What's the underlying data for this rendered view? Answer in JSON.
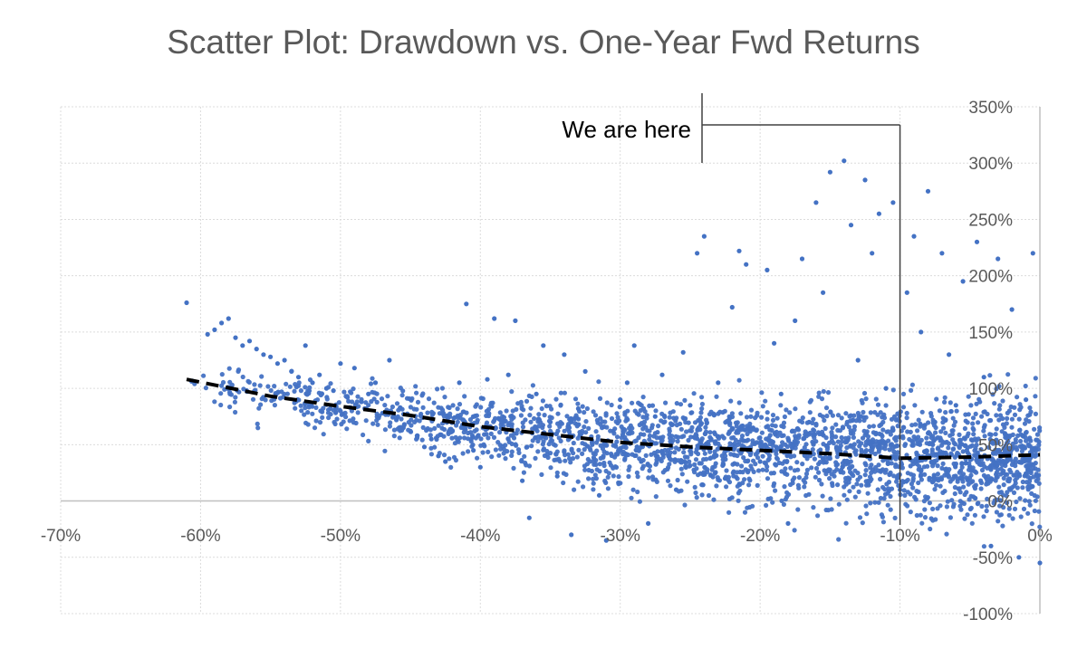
{
  "chart_data": {
    "type": "scatter",
    "title": "Scatter Plot: Drawdown vs. One-Year Fwd Returns",
    "xlabel": "",
    "ylabel": "",
    "xlim": [
      -0.7,
      0.0
    ],
    "ylim": [
      -1.0,
      3.5
    ],
    "x_ticks": [
      {
        "value": -0.7,
        "label": "-70%"
      },
      {
        "value": -0.6,
        "label": "-60%"
      },
      {
        "value": -0.5,
        "label": "-50%"
      },
      {
        "value": -0.4,
        "label": "-40%"
      },
      {
        "value": -0.3,
        "label": "-30%"
      },
      {
        "value": -0.2,
        "label": "-20%"
      },
      {
        "value": -0.1,
        "label": "-10%"
      },
      {
        "value": 0.0,
        "label": "0%"
      }
    ],
    "y_ticks": [
      {
        "value": 3.5,
        "label": "350%"
      },
      {
        "value": 3.0,
        "label": "300%"
      },
      {
        "value": 2.5,
        "label": "250%"
      },
      {
        "value": 2.0,
        "label": "200%"
      },
      {
        "value": 1.5,
        "label": "150%"
      },
      {
        "value": 1.0,
        "label": "100%"
      },
      {
        "value": 0.5,
        "label": "50%"
      },
      {
        "value": 0.0,
        "label": "0%"
      },
      {
        "value": -0.5,
        "label": "-50%"
      },
      {
        "value": -1.0,
        "label": "-100%"
      }
    ],
    "grid": true,
    "legend": "none",
    "point_color": "#4472C4",
    "series": [
      {
        "values": [
          [
            -0.61,
            1.76
          ],
          [
            -0.595,
            1.48
          ],
          [
            -0.59,
            1.52
          ],
          [
            -0.585,
            1.58
          ],
          [
            -0.58,
            1.62
          ],
          [
            -0.575,
            1.45
          ],
          [
            -0.57,
            1.38
          ],
          [
            -0.565,
            1.42
          ],
          [
            -0.56,
            1.35
          ],
          [
            -0.555,
            1.3
          ],
          [
            -0.55,
            1.28
          ],
          [
            -0.545,
            1.22
          ],
          [
            -0.54,
            1.25
          ],
          [
            -0.535,
            1.15
          ],
          [
            -0.53,
            1.1
          ],
          [
            -0.525,
            1.38
          ],
          [
            -0.52,
            1.05
          ],
          [
            -0.515,
            1.12
          ],
          [
            -0.51,
            1.0
          ],
          [
            -0.505,
            0.98
          ],
          [
            -0.5,
            1.22
          ],
          [
            -0.495,
            0.92
          ],
          [
            -0.49,
            1.18
          ],
          [
            -0.485,
            0.88
          ],
          [
            -0.48,
            0.95
          ],
          [
            -0.475,
            1.05
          ],
          [
            -0.47,
            0.78
          ],
          [
            -0.465,
            1.25
          ],
          [
            -0.46,
            0.72
          ],
          [
            -0.455,
            0.65
          ],
          [
            -0.45,
            0.62
          ],
          [
            -0.445,
            0.58
          ],
          [
            -0.44,
            0.48
          ],
          [
            -0.435,
            0.55
          ],
          [
            -0.43,
            0.4
          ],
          [
            -0.425,
            0.35
          ],
          [
            -0.42,
            0.62
          ],
          [
            -0.415,
            1.05
          ],
          [
            -0.41,
            1.75
          ],
          [
            -0.405,
            0.45
          ],
          [
            -0.4,
            0.3
          ],
          [
            -0.395,
            1.08
          ],
          [
            -0.39,
            1.62
          ],
          [
            -0.385,
            0.65
          ],
          [
            -0.38,
            1.12
          ],
          [
            -0.375,
            1.6
          ],
          [
            -0.37,
            0.18
          ],
          [
            -0.365,
            -0.15
          ],
          [
            -0.36,
            0.95
          ],
          [
            -0.355,
            1.38
          ],
          [
            -0.35,
            0.7
          ],
          [
            -0.345,
            0.22
          ],
          [
            -0.34,
            1.3
          ],
          [
            -0.335,
            -0.3
          ],
          [
            -0.33,
            0.82
          ],
          [
            -0.325,
            1.15
          ],
          [
            -0.32,
            0.5
          ],
          [
            -0.315,
            0.05
          ],
          [
            -0.31,
            -0.35
          ],
          [
            -0.305,
            0.62
          ],
          [
            -0.3,
            0.9
          ],
          [
            -0.295,
            1.05
          ],
          [
            -0.29,
            1.38
          ],
          [
            -0.285,
            0.35
          ],
          [
            -0.28,
            -0.2
          ],
          [
            -0.275,
            0.75
          ],
          [
            -0.27,
            1.12
          ],
          [
            -0.265,
            0.4
          ],
          [
            -0.26,
            0.1
          ],
          [
            -0.255,
            1.32
          ],
          [
            -0.25,
            0.85
          ],
          [
            -0.245,
            2.2
          ],
          [
            -0.24,
            2.35
          ],
          [
            -0.235,
            0.55
          ],
          [
            -0.23,
            1.05
          ],
          [
            -0.225,
            0.2
          ],
          [
            -0.22,
            1.72
          ],
          [
            -0.215,
            2.22
          ],
          [
            -0.21,
            2.1
          ],
          [
            -0.205,
            0.65
          ],
          [
            -0.2,
            0.35
          ],
          [
            -0.195,
            2.05
          ],
          [
            -0.19,
            1.4
          ],
          [
            -0.185,
            0.95
          ],
          [
            -0.18,
            -0.2
          ],
          [
            -0.175,
            1.6
          ],
          [
            -0.17,
            2.15
          ],
          [
            -0.165,
            0.7
          ],
          [
            -0.16,
            2.65
          ],
          [
            -0.155,
            1.85
          ],
          [
            -0.15,
            2.92
          ],
          [
            -0.145,
            0.45
          ],
          [
            -0.14,
            3.02
          ],
          [
            -0.135,
            2.45
          ],
          [
            -0.13,
            1.25
          ],
          [
            -0.125,
            2.85
          ],
          [
            -0.12,
            2.2
          ],
          [
            -0.115,
            2.55
          ],
          [
            -0.11,
            1.0
          ],
          [
            -0.105,
            2.65
          ],
          [
            -0.1,
            0.1
          ],
          [
            -0.095,
            1.85
          ],
          [
            -0.09,
            2.35
          ],
          [
            -0.085,
            1.5
          ],
          [
            -0.08,
            2.75
          ],
          [
            -0.075,
            0.7
          ],
          [
            -0.07,
            2.2
          ],
          [
            -0.065,
            1.3
          ],
          [
            -0.06,
            0.85
          ],
          [
            -0.055,
            1.95
          ],
          [
            -0.05,
            0.3
          ],
          [
            -0.045,
            2.3
          ],
          [
            -0.04,
            1.1
          ],
          [
            -0.035,
            -0.4
          ],
          [
            -0.03,
            2.15
          ],
          [
            -0.025,
            0.6
          ],
          [
            -0.02,
            1.7
          ],
          [
            -0.015,
            -0.5
          ],
          [
            -0.01,
            0.9
          ],
          [
            -0.005,
            2.2
          ],
          [
            0.0,
            -0.55
          ]
        ]
      },
      {
        "name": "trend",
        "style": "dashed",
        "values": [
          [
            -0.61,
            1.08
          ],
          [
            -0.55,
            0.93
          ],
          [
            -0.5,
            0.84
          ],
          [
            -0.45,
            0.76
          ],
          [
            -0.4,
            0.66
          ],
          [
            -0.35,
            0.59
          ],
          [
            -0.3,
            0.52
          ],
          [
            -0.25,
            0.48
          ],
          [
            -0.2,
            0.45
          ],
          [
            -0.15,
            0.42
          ],
          [
            -0.1,
            0.38
          ],
          [
            -0.05,
            0.39
          ],
          [
            0.0,
            0.41
          ]
        ]
      }
    ],
    "annotations": [
      {
        "text": "We are here",
        "x": -0.1
      }
    ]
  }
}
